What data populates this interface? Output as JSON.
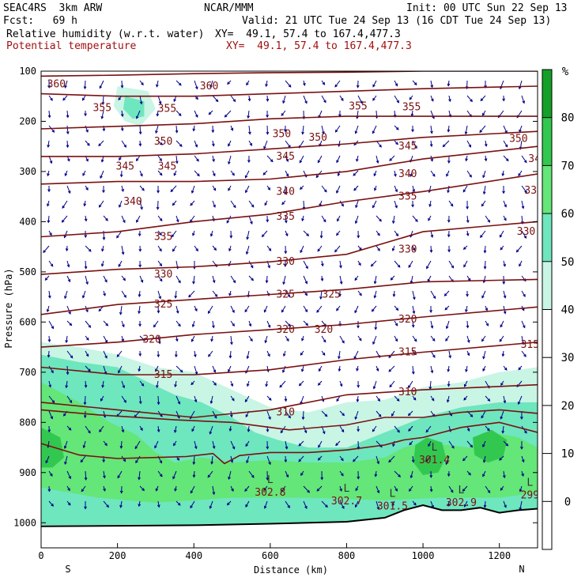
{
  "header": {
    "model": "SEAC4RS  3km ARW",
    "org": "NCAR/MMM",
    "init": "Init: 00 UTC Sun 22 Sep 13",
    "fcst": "Fcst:   69 h",
    "valid": "Valid: 21 UTC Tue 24 Sep 13 (16 CDT Tue 24 Sep 13)",
    "field1": "Relative humidity (w.r.t. water)",
    "field1_xy": "XY=  49.1, 57.4 to 167.4,477.3",
    "field2": "Potential temperature",
    "field2_xy": "XY=  49.1, 57.4 to 167.4,477.3"
  },
  "colors": {
    "theta": "#7a1010",
    "vector": "#000088",
    "terrain": "#000000",
    "rh_levels": [
      "#ffffff",
      "#ffffff",
      "#ffffff",
      "#ffffff",
      "#c8f5e4",
      "#6ee6be",
      "#64e678",
      "#32c850",
      "#14a028"
    ]
  },
  "chart_data": {
    "type": "cross-section",
    "xlabel": "Distance (km)",
    "ylabel": "Pressure (hPa)",
    "xlim": [
      0,
      1300
    ],
    "ylim": [
      1050,
      100
    ],
    "x_ticks": [
      0,
      200,
      400,
      600,
      800,
      1000,
      1200
    ],
    "y_ticks": [
      100,
      200,
      300,
      400,
      500,
      600,
      700,
      800,
      900,
      1000
    ],
    "x_end_labels": {
      "left": "S",
      "right": "N"
    },
    "colorbar": {
      "unit": "%",
      "ticks": [
        0,
        10,
        20,
        30,
        40,
        50,
        60,
        70,
        80
      ],
      "levels": [
        -10,
        0,
        10,
        20,
        30,
        40,
        50,
        60,
        70,
        80,
        90
      ]
    },
    "theta_contours": [
      {
        "value": 360,
        "points": [
          [
            0,
            110
          ],
          [
            200,
            108
          ],
          [
            400,
            105
          ],
          [
            600,
            103
          ],
          [
            800,
            102
          ],
          [
            1000,
            100
          ],
          [
            1300,
            100
          ]
        ],
        "labels": [
          [
            40,
            126
          ],
          [
            440,
            130
          ]
        ]
      },
      {
        "value": 355,
        "points": [
          [
            0,
            145
          ],
          [
            200,
            150
          ],
          [
            400,
            150
          ],
          [
            600,
            145
          ],
          [
            800,
            140
          ],
          [
            1000,
            135
          ],
          [
            1300,
            130
          ]
        ],
        "labels": [
          [
            160,
            173
          ],
          [
            330,
            175
          ],
          [
            830,
            170
          ],
          [
            970,
            172
          ]
        ]
      },
      {
        "value": 350,
        "points": [
          [
            0,
            215
          ],
          [
            200,
            210
          ],
          [
            400,
            205
          ],
          [
            600,
            195
          ],
          [
            800,
            190
          ],
          [
            1000,
            190
          ],
          [
            1300,
            190
          ]
        ],
        "labels": [
          [
            320,
            240
          ],
          [
            630,
            225
          ],
          [
            725,
            232
          ],
          [
            1250,
            235
          ]
        ]
      },
      {
        "value": 345,
        "points": [
          [
            0,
            270
          ],
          [
            200,
            270
          ],
          [
            400,
            265
          ],
          [
            600,
            255
          ],
          [
            800,
            245
          ],
          [
            1000,
            232
          ],
          [
            1300,
            220
          ]
        ],
        "labels": [
          [
            220,
            290
          ],
          [
            330,
            290
          ],
          [
            640,
            270
          ],
          [
            960,
            250
          ]
        ]
      },
      {
        "value": 340,
        "points": [
          [
            0,
            325
          ],
          [
            200,
            320
          ],
          [
            400,
            320
          ],
          [
            600,
            315
          ],
          [
            800,
            300
          ],
          [
            1000,
            275
          ],
          [
            1300,
            250
          ]
        ],
        "labels": [
          [
            240,
            360
          ],
          [
            640,
            340
          ],
          [
            960,
            305
          ],
          [
            1300,
            275
          ]
        ]
      },
      {
        "value": 335,
        "points": [
          [
            0,
            430
          ],
          [
            200,
            420
          ],
          [
            400,
            400
          ],
          [
            600,
            385
          ],
          [
            800,
            360
          ],
          [
            1000,
            340
          ],
          [
            1300,
            305
          ]
        ],
        "labels": [
          [
            320,
            430
          ],
          [
            640,
            390
          ],
          [
            960,
            350
          ],
          [
            1290,
            338
          ]
        ]
      },
      {
        "value": 330,
        "points": [
          [
            0,
            505
          ],
          [
            200,
            495
          ],
          [
            400,
            490
          ],
          [
            600,
            480
          ],
          [
            800,
            465
          ],
          [
            1000,
            420
          ],
          [
            1300,
            400
          ]
        ],
        "labels": [
          [
            320,
            505
          ],
          [
            640,
            480
          ],
          [
            960,
            455
          ],
          [
            1270,
            420
          ]
        ]
      },
      {
        "value": 325,
        "points": [
          [
            0,
            585
          ],
          [
            200,
            565
          ],
          [
            400,
            555
          ],
          [
            600,
            545
          ],
          [
            800,
            535
          ],
          [
            1000,
            520
          ],
          [
            1300,
            515
          ]
        ],
        "labels": [
          [
            320,
            565
          ],
          [
            640,
            545
          ],
          [
            760,
            545
          ]
        ]
      },
      {
        "value": 320,
        "points": [
          [
            0,
            650
          ],
          [
            200,
            640
          ],
          [
            400,
            625
          ],
          [
            600,
            615
          ],
          [
            800,
            605
          ],
          [
            1000,
            590
          ],
          [
            1300,
            570
          ]
        ],
        "labels": [
          [
            290,
            635
          ],
          [
            640,
            615
          ],
          [
            740,
            615
          ],
          [
            960,
            595
          ]
        ]
      },
      {
        "value": 315,
        "points": [
          [
            0,
            690
          ],
          [
            200,
            705
          ],
          [
            400,
            705
          ],
          [
            600,
            695
          ],
          [
            800,
            675
          ],
          [
            1000,
            660
          ],
          [
            1300,
            640
          ]
        ],
        "labels": [
          [
            320,
            705
          ],
          [
            960,
            660
          ],
          [
            1280,
            645
          ]
        ]
      },
      {
        "value": 310,
        "points": [
          [
            0,
            760
          ],
          [
            200,
            775
          ],
          [
            400,
            790
          ],
          [
            600,
            775
          ],
          [
            800,
            745
          ],
          [
            1000,
            735
          ],
          [
            1300,
            725
          ]
        ],
        "labels": [
          [
            640,
            780
          ],
          [
            960,
            740
          ]
        ]
      }
    ],
    "boundary_contours": [
      {
        "points": [
          [
            0,
            775
          ],
          [
            150,
            785
          ],
          [
            350,
            795
          ],
          [
            500,
            800
          ],
          [
            650,
            815
          ],
          [
            800,
            805
          ],
          [
            900,
            790
          ],
          [
            1000,
            790
          ],
          [
            1100,
            780
          ],
          [
            1200,
            775
          ],
          [
            1300,
            782
          ]
        ]
      },
      {
        "points": [
          [
            0,
            842
          ],
          [
            100,
            865
          ],
          [
            200,
            872
          ],
          [
            300,
            870
          ],
          [
            380,
            868
          ],
          [
            450,
            862
          ],
          [
            480,
            882
          ],
          [
            520,
            866
          ],
          [
            600,
            860
          ],
          [
            700,
            860
          ],
          [
            800,
            855
          ],
          [
            900,
            845
          ],
          [
            950,
            835
          ],
          [
            1000,
            830
          ],
          [
            1100,
            810
          ],
          [
            1200,
            800
          ],
          [
            1300,
            820
          ]
        ]
      }
    ],
    "terrain": [
      [
        0,
        1007
      ],
      [
        200,
        1006
      ],
      [
        400,
        1005
      ],
      [
        600,
        1002
      ],
      [
        800,
        998
      ],
      [
        900,
        990
      ],
      [
        950,
        975
      ],
      [
        1000,
        965
      ],
      [
        1050,
        975
      ],
      [
        1100,
        975
      ],
      [
        1150,
        970
      ],
      [
        1200,
        980
      ],
      [
        1250,
        975
      ],
      [
        1300,
        972
      ]
    ],
    "low_labels": [
      {
        "x": 600,
        "p": 940,
        "text": "302.8"
      },
      {
        "x": 800,
        "p": 957,
        "text": "302.7"
      },
      {
        "x": 920,
        "p": 967,
        "text": "301.5"
      },
      {
        "x": 1030,
        "p": 875,
        "text": "301.4"
      },
      {
        "x": 1100,
        "p": 960,
        "text": "302.9"
      },
      {
        "x": 1280,
        "p": 945,
        "text": "299"
      }
    ],
    "rh_regions": [
      {
        "level": 4,
        "points": [
          [
            0,
            640
          ],
          [
            100,
            650
          ],
          [
            200,
            665
          ],
          [
            300,
            690
          ],
          [
            400,
            700
          ],
          [
            500,
            735
          ],
          [
            600,
            770
          ],
          [
            700,
            780
          ],
          [
            800,
            760
          ],
          [
            900,
            755
          ],
          [
            1000,
            730
          ],
          [
            1100,
            720
          ],
          [
            1200,
            700
          ],
          [
            1300,
            690
          ],
          [
            1300,
            1000
          ],
          [
            0,
            1005
          ]
        ]
      },
      {
        "level": 5,
        "points": [
          [
            0,
            665
          ],
          [
            100,
            680
          ],
          [
            200,
            690
          ],
          [
            280,
            720
          ],
          [
            350,
            745
          ],
          [
            420,
            760
          ],
          [
            500,
            790
          ],
          [
            560,
            820
          ],
          [
            620,
            835
          ],
          [
            700,
            850
          ],
          [
            800,
            850
          ],
          [
            900,
            820
          ],
          [
            1000,
            790
          ],
          [
            1100,
            770
          ],
          [
            1200,
            760
          ],
          [
            1300,
            760
          ],
          [
            1300,
            1000
          ],
          [
            0,
            1005
          ]
        ]
      },
      {
        "level": 6,
        "points": [
          [
            0,
            720
          ],
          [
            100,
            760
          ],
          [
            180,
            800
          ],
          [
            250,
            825
          ],
          [
            300,
            860
          ],
          [
            350,
            880
          ],
          [
            420,
            870
          ],
          [
            500,
            880
          ],
          [
            600,
            875
          ],
          [
            700,
            880
          ],
          [
            800,
            880
          ],
          [
            900,
            870
          ],
          [
            950,
            850
          ],
          [
            1000,
            840
          ],
          [
            1060,
            845
          ],
          [
            1120,
            850
          ],
          [
            1180,
            820
          ],
          [
            1250,
            830
          ],
          [
            1300,
            850
          ],
          [
            1300,
            940
          ],
          [
            1200,
            950
          ],
          [
            1050,
            950
          ],
          [
            900,
            955
          ],
          [
            700,
            950
          ],
          [
            500,
            950
          ],
          [
            300,
            960
          ],
          [
            150,
            950
          ],
          [
            0,
            930
          ]
        ]
      },
      {
        "level": 7,
        "points": [
          [
            980,
            845
          ],
          [
            1010,
            830
          ],
          [
            1050,
            840
          ],
          [
            1060,
            870
          ],
          [
            1040,
            900
          ],
          [
            1000,
            905
          ],
          [
            975,
            880
          ]
        ]
      },
      {
        "level": 7,
        "points": [
          [
            1130,
            830
          ],
          [
            1180,
            815
          ],
          [
            1220,
            835
          ],
          [
            1210,
            870
          ],
          [
            1170,
            880
          ],
          [
            1135,
            865
          ]
        ]
      },
      {
        "level": 7,
        "points": [
          [
            0,
            810
          ],
          [
            50,
            830
          ],
          [
            60,
            870
          ],
          [
            30,
            890
          ],
          [
            0,
            890
          ]
        ]
      },
      {
        "level": 4,
        "points": [
          [
            200,
            130
          ],
          [
            280,
            140
          ],
          [
            300,
            175
          ],
          [
            260,
            210
          ],
          [
            220,
            200
          ],
          [
            190,
            170
          ]
        ]
      },
      {
        "level": 5,
        "points": [
          [
            220,
            150
          ],
          [
            270,
            160
          ],
          [
            270,
            190
          ],
          [
            240,
            195
          ],
          [
            215,
            175
          ]
        ]
      }
    ]
  }
}
